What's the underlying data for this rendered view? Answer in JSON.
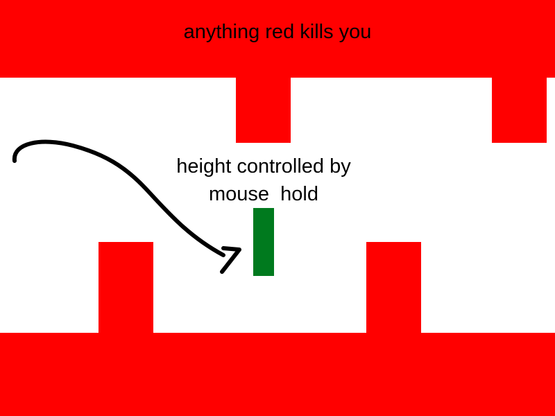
{
  "text": {
    "warning": "anything red kills you",
    "hint_line1": "height controlled by",
    "hint_line2": "mouse  hold"
  },
  "colors": {
    "hazard": "#ff0000",
    "player": "#007a1e",
    "background": "#ffffff",
    "text": "#000000"
  },
  "icons": {
    "arrow": "curved-arrow-icon"
  }
}
